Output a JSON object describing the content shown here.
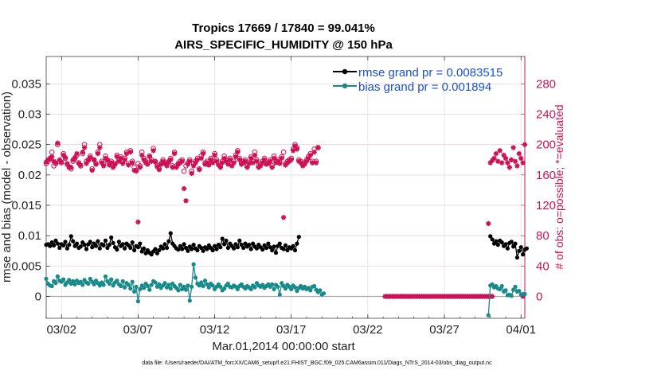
{
  "chart_data": {
    "type": "line",
    "title": "Tropics 17669 / 17840 = 99.041%",
    "subtitle": "AIRS_SPECIFIC_HUMIDITY @ 150 hPa",
    "xlabel": "Mar.01,2014 00:00:00 start",
    "ylabel": "rmse and bias (model - observation)",
    "y2label": "# of obs: o=possible; *=evaluated",
    "footer": "data file: /Users/raeder/DAI/ATM_forcXX/CAM6_setup/f.e21.FHIST_BGC.f09_025.CAM6assim.011/Diags_NTrS_2014-03/obs_diag_output.nc",
    "xlim": [
      0,
      31.25
    ],
    "ylim": [
      -0.0036,
      0.0395
    ],
    "y2lim": [
      -28.8,
      316
    ],
    "x_ticks": [
      1,
      6,
      11,
      16,
      21,
      26,
      31
    ],
    "x_tick_labels": [
      "03/02",
      "03/07",
      "03/12",
      "03/17",
      "03/22",
      "03/27",
      "04/01"
    ],
    "y_ticks": [
      0,
      0.005,
      0.01,
      0.015,
      0.02,
      0.025,
      0.03,
      0.035
    ],
    "y_tick_labels": [
      "0",
      "0.005",
      "0.01",
      "0.015",
      "0.02",
      "0.025",
      "0.03",
      "0.035"
    ],
    "y2_ticks": [
      0,
      40,
      80,
      120,
      160,
      200,
      240,
      280
    ],
    "y2_tick_labels": [
      "0",
      "40",
      "80",
      "120",
      "160",
      "200",
      "240",
      "280"
    ],
    "x_step": 0.125,
    "series": [
      {
        "name": "rmse grand pr = 0.0083515",
        "axis": "left",
        "color": "#000000",
        "segments": [
          {
            "start": 0.0,
            "values": [
              0.0085,
              0.0086,
              0.0083,
              0.0089,
              0.0084,
              0.0092,
              0.0087,
              0.008,
              0.0086,
              0.0084,
              0.009,
              0.0079,
              0.0085,
              0.0099,
              0.0091,
              0.0083,
              0.0087,
              0.008,
              0.0082,
              0.0089,
              0.0085,
              0.0078,
              0.0086,
              0.009,
              0.0081,
              0.0087,
              0.0083,
              0.0091,
              0.0079,
              0.0086,
              0.0084,
              0.0092,
              0.008,
              0.0085,
              0.0097,
              0.0088,
              0.0081,
              0.0077,
              0.009,
              0.0083,
              0.0086,
              0.0079,
              0.0087,
              0.0084,
              0.008,
              0.0089,
              0.0076,
              0.0083,
              0.0081,
              0.0087,
              0.0074,
              0.0079,
              0.0071,
              0.0076,
              0.0072,
              0.0069,
              0.0074,
              0.0078,
              0.0071,
              0.0076,
              0.0082,
              0.0079,
              0.0086,
              0.008,
              0.0091,
              0.0104,
              0.0087,
              0.0083,
              0.0079,
              0.0077,
              0.0083,
              0.0078,
              0.0086,
              0.008,
              0.0075,
              0.0082,
              0.0078,
              0.0085,
              0.0079,
              0.0076,
              0.0083,
              0.008,
              0.0075,
              0.0081,
              0.0078,
              0.0084,
              0.008,
              0.0076,
              0.0083,
              0.0078,
              0.0085,
              0.0081,
              0.0095,
              0.0086,
              0.0092,
              0.008,
              0.0087,
              0.0083,
              0.0079,
              0.0086,
              0.0081,
              0.0092,
              0.0085,
              0.008,
              0.0087,
              0.0082,
              0.0085,
              0.0078,
              0.0087,
              0.0082,
              0.0079,
              0.0085,
              0.0081,
              0.0077,
              0.0084,
              0.008,
              0.0087,
              0.0081,
              0.0076,
              0.0082,
              0.0072,
              0.0083,
              0.0087,
              0.008,
              0.0078,
              0.0084,
              0.0076,
              0.0081,
              0.0079,
              0.0083,
              0.0076,
              0.0087,
              0.0098
            ]
          },
          {
            "start": 29.0,
            "values": [
              0.0099,
              0.0094,
              0.0087,
              0.0091,
              0.0085,
              0.0092,
              0.0089,
              0.0083,
              0.0086,
              0.0079,
              0.0088,
              0.009,
              0.0082,
              0.0087,
              0.0064,
              0.0075,
              0.0081,
              0.0069,
              0.0077,
              0.0079
            ]
          }
        ]
      },
      {
        "name": "bias grand pr = 0.001894",
        "axis": "left",
        "color": "#178a8a",
        "segments": [
          {
            "start": 0.0,
            "values": [
              0.0029,
              0.0021,
              0.0018,
              0.0017,
              0.0025,
              0.0022,
              0.0033,
              0.0026,
              0.0024,
              0.0028,
              0.0019,
              0.0023,
              0.0027,
              0.0021,
              0.0025,
              0.002,
              0.0026,
              0.0022,
              0.0024,
              0.0019,
              0.0027,
              0.0023,
              0.0021,
              0.0029,
              0.0024,
              0.002,
              0.0026,
              0.0022,
              0.0018,
              0.0023,
              0.0019,
              0.0033,
              0.0025,
              0.0021,
              0.0028,
              0.0018,
              0.0023,
              0.0026,
              0.002,
              0.0017,
              0.0025,
              0.0015,
              0.0022,
              0.0019,
              0.0013,
              0.0024,
              0.0008,
              0.0016,
              -0.0008,
              0.0012,
              0.0018,
              0.0014,
              0.0021,
              0.0017,
              0.0011,
              0.0019,
              0.0025,
              0.0023,
              0.0016,
              0.002,
              0.0014,
              0.0018,
              0.0022,
              0.0015,
              0.0019,
              0.0013,
              0.0021,
              0.0017,
              0.0014,
              0.001,
              0.0019,
              0.0012,
              0.0016,
              0.0011,
              0.0018,
              -0.0007,
              0.0016,
              0.0053,
              0.0031,
              0.0021,
              0.0018,
              0.0023,
              0.0017,
              0.0026,
              0.002,
              0.0015,
              0.0021,
              0.0018,
              0.0012,
              0.0016,
              0.002,
              0.0016,
              0.001,
              0.0013,
              0.0018,
              0.0021,
              0.0016,
              0.0015,
              0.0018,
              0.0016,
              0.0012,
              0.0017,
              0.002,
              0.0016,
              0.0013,
              0.0017,
              0.0015,
              0.0012,
              0.0018,
              0.0015,
              0.0022,
              0.0018,
              0.0016,
              0.0019,
              0.0014,
              0.0017,
              0.002,
              0.0016,
              0.002,
              0.0012,
              0.0019,
              0.0016,
              0.0003,
              0.0022,
              0.0017,
              0.0013,
              0.0019,
              0.0016,
              0.0012,
              0.0018,
              0.0015,
              0.0009,
              0.0014,
              0.0017,
              0.0013,
              0.0016,
              0.0012,
              0.0014,
              0.001,
              0.0016,
              0.0017,
              0.0011,
              0.0007,
              0.001,
              0.0003,
              0.0005
            ]
          },
          {
            "start": 28.875,
            "values": [
              -0.0031,
              0.0018,
              0.002,
              0.0015,
              0.0017,
              0.0013,
              0.0012,
              0.0017,
              0.0008,
              0.001,
              0.0002,
              0.0003,
              0.0001,
              0.0011,
              0.0016,
              0.0008,
              0.0009,
              0.0003,
              0.0004,
              0.0004
            ]
          }
        ]
      },
      {
        "name": "# obs possible",
        "axis": "right",
        "marker": "o",
        "color": "#cc1155",
        "values": [
          175,
          178,
          182,
          190,
          172,
          175,
          200,
          178,
          176,
          188,
          182,
          174,
          170,
          168,
          178,
          182,
          186,
          176,
          172,
          188,
          200,
          178,
          180,
          185,
          168,
          180,
          175,
          190,
          200,
          178,
          174,
          185,
          180,
          176,
          178,
          172,
          175,
          186,
          180,
          184,
          177,
          182,
          190,
          175,
          192,
          178,
          170,
          166,
          175,
          172,
          190,
          182,
          178,
          176,
          185,
          180,
          195,
          178,
          172,
          168,
          175,
          180,
          176,
          174,
          178,
          182,
          172,
          190,
          172,
          175,
          178,
          180,
          165,
          172,
          176,
          180,
          165,
          175,
          178,
          182,
          168,
          185,
          190,
          176,
          178,
          174,
          182,
          178,
          188,
          180,
          175,
          172,
          178,
          185,
          180,
          176,
          182,
          174,
          178,
          186,
          192,
          182,
          176,
          178,
          180,
          172,
          176,
          184,
          178,
          190,
          180,
          172,
          174,
          178,
          182,
          175,
          176,
          180,
          172,
          185,
          178,
          180,
          176,
          184,
          190,
          175,
          178,
          180,
          182,
          194,
          200,
          196,
          180,
          178,
          174,
          176,
          180,
          184,
          188,
          178,
          194,
          178,
          196
        ],
        "visible_from": 0.0,
        "visible_to": 19.0
      },
      {
        "name": "# obs evaluated",
        "axis": "right",
        "marker": "*",
        "color": "#cc1155",
        "segments": [
          {
            "start": 0.0,
            "values": [
              177,
              180,
              181,
              184,
              178,
              176,
              202,
              180,
              177,
              186,
              183,
              175,
              171,
              170,
              180,
              183,
              188,
              175,
              173,
              190,
              196,
              175,
              179,
              183,
              166,
              180,
              174,
              188,
              196,
              176,
              172,
              182,
              179,
              173,
              176,
              170,
              174,
              184,
              178,
              182,
              175,
              180,
              188,
              173,
              190,
              176,
              166,
              165,
              98,
              170,
              186,
              180,
              176,
              174,
              184,
              178,
              192,
              177,
              171,
              167,
              174,
              178,
              175,
              172,
              177,
              180,
              170,
              188,
              170,
              174,
              176,
              178,
              142,
              126,
              174,
              178,
              162,
              172,
              176,
              180,
              167,
              182,
              188,
              174,
              176,
              173,
              180,
              176,
              186,
              178,
              173,
              170,
              176,
              182,
              178,
              174,
              180,
              172,
              176,
              184,
              190,
              180,
              174,
              176,
              178,
              170,
              175,
              182,
              176,
              186,
              178,
              170,
              172,
              176,
              180,
              174,
              175,
              178,
              170,
              182,
              176,
              178,
              175,
              182,
              104,
              173,
              176,
              178,
              180,
              192,
              198,
              194,
              178,
              176,
              172,
              174,
              178,
              182,
              186,
              176,
              190,
              176,
              196
            ]
          },
          {
            "start": 22.125,
            "values": [
              0,
              0,
              0,
              0,
              0,
              0,
              0,
              0,
              0,
              0,
              0,
              0,
              0,
              0,
              0,
              0,
              0,
              0,
              0,
              0,
              0,
              0,
              0,
              0,
              0,
              0,
              0,
              0,
              0,
              0,
              0,
              0,
              0,
              0,
              0,
              0,
              0,
              0,
              0,
              0,
              0,
              0,
              0,
              0,
              0,
              0,
              0,
              0,
              0,
              0,
              0,
              0,
              0,
              0,
              0,
              0,
              0
            ]
          },
          {
            "start": 28.875,
            "values": [
              96,
              176,
              179,
              182,
              188,
              178,
              192,
              176,
              186,
              182,
              176,
              170,
              180,
              196,
              178,
              172,
              188,
              182,
              176,
              200
            ]
          },
          {
            "start": 31.125,
            "values": [
              0
            ]
          }
        ]
      }
    ],
    "legend": [
      "rmse grand pr = 0.0083515",
      "bias grand pr = 0.001894"
    ],
    "legend_location": "top-right"
  }
}
